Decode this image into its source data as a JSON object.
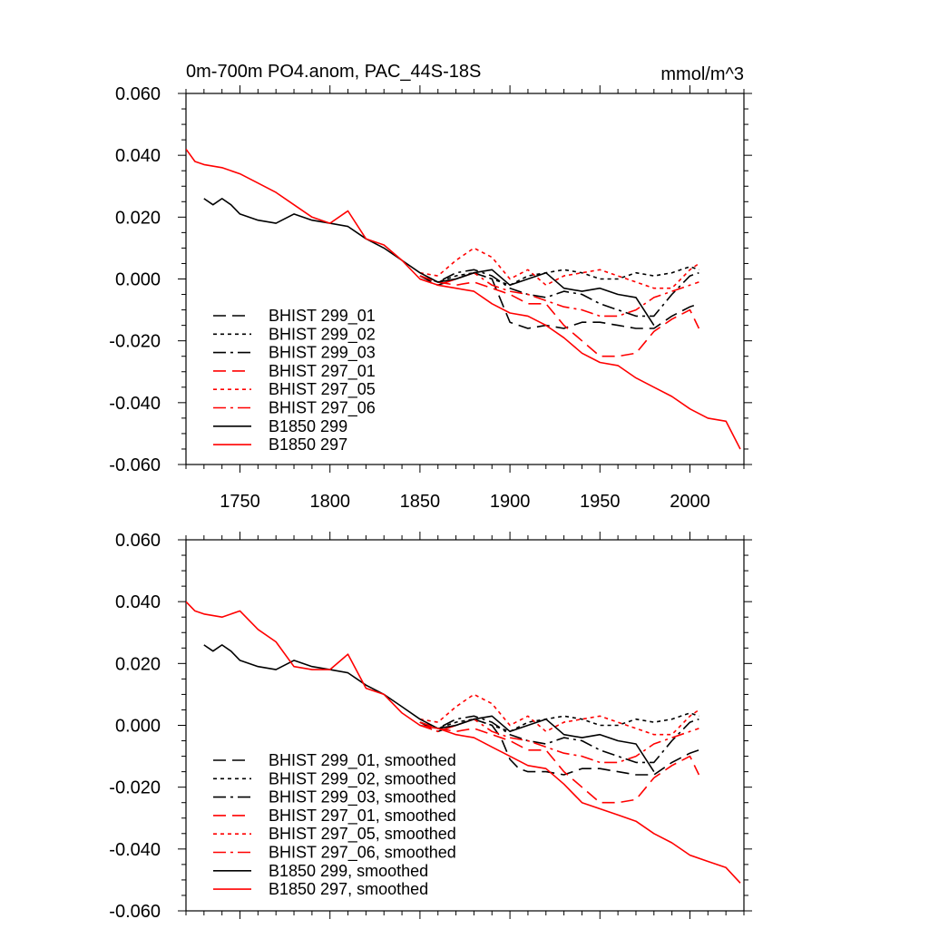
{
  "chart_data": [
    {
      "type": "line",
      "title": "0m-700m PO4.anom, PAC_44S-18S",
      "units": "mmol/m^3",
      "xlim": [
        1720,
        2030
      ],
      "ylim": [
        -0.06,
        0.06
      ],
      "xticks": [
        1750,
        1800,
        1850,
        1900,
        1950,
        2000
      ],
      "yticks": [
        -0.06,
        -0.04,
        -0.02,
        0.0,
        0.02,
        0.04,
        0.06
      ],
      "ytick_labels": [
        "-0.060",
        "-0.040",
        "-0.020",
        "0.000",
        "0.020",
        "0.040",
        "0.060"
      ],
      "xtick_labels": [
        "1750",
        "1800",
        "1850",
        "1900",
        "1950",
        "2000"
      ],
      "legend_position": "lower-left",
      "series": [
        {
          "name": "BHIST 299_01",
          "color": "#000000",
          "dash": "dashed",
          "x": [
            1850,
            1860,
            1870,
            1880,
            1890,
            1900,
            1910,
            1920,
            1930,
            1940,
            1950,
            1960,
            1970,
            1980,
            1990,
            2000,
            2005
          ],
          "y": [
            0.001,
            -0.002,
            0.0,
            0.002,
            0.0,
            -0.014,
            -0.016,
            -0.015,
            -0.016,
            -0.014,
            -0.014,
            -0.015,
            -0.016,
            -0.016,
            -0.012,
            -0.009,
            -0.008
          ]
        },
        {
          "name": "BHIST 299_02",
          "color": "#000000",
          "dash": "dotted",
          "x": [
            1850,
            1860,
            1870,
            1880,
            1890,
            1900,
            1910,
            1920,
            1930,
            1940,
            1950,
            1960,
            1970,
            1980,
            1990,
            2000,
            2005
          ],
          "y": [
            0.001,
            -0.001,
            0.001,
            0.002,
            0.0,
            -0.002,
            0.001,
            0.002,
            0.003,
            0.002,
            0.0,
            0.0,
            0.002,
            0.001,
            0.002,
            0.004,
            0.003
          ]
        },
        {
          "name": "BHIST 299_03",
          "color": "#000000",
          "dash": "dashdot",
          "x": [
            1850,
            1860,
            1870,
            1880,
            1890,
            1900,
            1910,
            1920,
            1930,
            1940,
            1950,
            1960,
            1970,
            1980,
            1990,
            2000,
            2005
          ],
          "y": [
            0.001,
            -0.001,
            0.002,
            0.003,
            0.001,
            -0.003,
            -0.005,
            -0.006,
            -0.004,
            -0.005,
            -0.008,
            -0.01,
            -0.012,
            -0.012,
            -0.005,
            0.001,
            0.002
          ]
        },
        {
          "name": "BHIST 297_01",
          "color": "#ff0000",
          "dash": "dashed",
          "x": [
            1850,
            1860,
            1870,
            1880,
            1890,
            1900,
            1910,
            1920,
            1930,
            1940,
            1950,
            1960,
            1970,
            1980,
            1990,
            2000,
            2005
          ],
          "y": [
            0.001,
            -0.001,
            -0.002,
            -0.001,
            -0.003,
            -0.005,
            -0.008,
            -0.008,
            -0.015,
            -0.02,
            -0.025,
            -0.025,
            -0.024,
            -0.017,
            -0.013,
            -0.01,
            -0.016
          ]
        },
        {
          "name": "BHIST 297_05",
          "color": "#ff0000",
          "dash": "dotted",
          "x": [
            1850,
            1860,
            1870,
            1880,
            1890,
            1900,
            1910,
            1920,
            1930,
            1940,
            1950,
            1960,
            1970,
            1980,
            1990,
            2000,
            2005
          ],
          "y": [
            0.002,
            0.001,
            0.006,
            0.01,
            0.007,
            0.0,
            0.003,
            -0.002,
            0.001,
            0.002,
            0.003,
            0.001,
            -0.001,
            -0.003,
            -0.003,
            0.003,
            0.005
          ]
        },
        {
          "name": "BHIST 297_06",
          "color": "#ff0000",
          "dash": "dashdot",
          "x": [
            1850,
            1860,
            1870,
            1880,
            1890,
            1900,
            1910,
            1920,
            1930,
            1940,
            1950,
            1960,
            1970,
            1980,
            1990,
            2000,
            2005
          ],
          "y": [
            0.0,
            -0.002,
            0.0,
            0.002,
            -0.002,
            -0.004,
            -0.005,
            -0.007,
            -0.009,
            -0.01,
            -0.012,
            -0.012,
            -0.01,
            -0.006,
            -0.004,
            -0.002,
            -0.001
          ]
        },
        {
          "name": "B1850 299",
          "color": "#000000",
          "dash": "solid",
          "x": [
            1730,
            1735,
            1740,
            1745,
            1750,
            1760,
            1770,
            1780,
            1790,
            1800,
            1810,
            1820,
            1830,
            1840,
            1850,
            1860,
            1870,
            1880,
            1890,
            1900,
            1910,
            1920,
            1930,
            1940,
            1950,
            1960,
            1970,
            1980
          ],
          "y": [
            0.026,
            0.024,
            0.026,
            0.024,
            0.021,
            0.019,
            0.018,
            0.021,
            0.019,
            0.018,
            0.017,
            0.013,
            0.01,
            0.006,
            0.002,
            -0.001,
            0.0,
            0.002,
            0.003,
            -0.002,
            0.0,
            0.002,
            -0.003,
            -0.004,
            -0.003,
            -0.005,
            -0.006,
            -0.015
          ]
        },
        {
          "name": "B1850 297",
          "color": "#ff0000",
          "dash": "solid",
          "x": [
            1720,
            1725,
            1730,
            1740,
            1750,
            1760,
            1770,
            1780,
            1790,
            1800,
            1810,
            1820,
            1830,
            1840,
            1850,
            1860,
            1870,
            1880,
            1890,
            1900,
            1910,
            1920,
            1930,
            1940,
            1950,
            1960,
            1970,
            1980,
            1990,
            2000,
            2010,
            2020,
            2028
          ],
          "y": [
            0.042,
            0.038,
            0.037,
            0.036,
            0.034,
            0.031,
            0.028,
            0.024,
            0.02,
            0.018,
            0.022,
            0.013,
            0.011,
            0.006,
            0.0,
            -0.002,
            -0.003,
            -0.004,
            -0.008,
            -0.011,
            -0.012,
            -0.015,
            -0.019,
            -0.024,
            -0.027,
            -0.028,
            -0.032,
            -0.035,
            -0.038,
            -0.042,
            -0.045,
            -0.046,
            -0.055
          ]
        }
      ]
    },
    {
      "type": "line",
      "xlim": [
        1720,
        2030
      ],
      "ylim": [
        -0.06,
        0.06
      ],
      "xticks": [
        1750,
        1800,
        1850,
        1900,
        1950,
        2000
      ],
      "yticks": [
        -0.06,
        -0.04,
        -0.02,
        0.0,
        0.02,
        0.04,
        0.06
      ],
      "ytick_labels": [
        "-0.060",
        "-0.040",
        "-0.020",
        "0.000",
        "0.020",
        "0.040",
        "0.060"
      ],
      "legend_position": "lower-left",
      "series": [
        {
          "name": "BHIST 299_01, smoothed",
          "color": "#000000",
          "dash": "dashed",
          "x": [
            1850,
            1860,
            1870,
            1880,
            1890,
            1895,
            1900,
            1905,
            1910,
            1920,
            1930,
            1940,
            1950,
            1960,
            1970,
            1980,
            1990,
            2000,
            2005
          ],
          "y": [
            0.001,
            -0.002,
            0.0,
            0.002,
            0.0,
            -0.004,
            -0.011,
            -0.014,
            -0.015,
            -0.015,
            -0.016,
            -0.014,
            -0.014,
            -0.015,
            -0.016,
            -0.016,
            -0.012,
            -0.009,
            -0.008
          ]
        },
        {
          "name": "BHIST 299_02, smoothed",
          "color": "#000000",
          "dash": "dotted",
          "x": [
            1850,
            1860,
            1870,
            1880,
            1890,
            1900,
            1910,
            1920,
            1930,
            1940,
            1950,
            1960,
            1970,
            1980,
            1990,
            2000,
            2005
          ],
          "y": [
            0.001,
            -0.001,
            0.001,
            0.002,
            0.0,
            -0.002,
            0.001,
            0.002,
            0.003,
            0.002,
            0.0,
            0.0,
            0.002,
            0.001,
            0.002,
            0.004,
            0.003
          ]
        },
        {
          "name": "BHIST 299_03, smoothed",
          "color": "#000000",
          "dash": "dashdot",
          "x": [
            1850,
            1860,
            1870,
            1880,
            1890,
            1900,
            1910,
            1920,
            1930,
            1940,
            1950,
            1960,
            1970,
            1980,
            1990,
            2000,
            2005
          ],
          "y": [
            0.001,
            -0.001,
            0.002,
            0.003,
            0.001,
            -0.003,
            -0.005,
            -0.006,
            -0.004,
            -0.005,
            -0.008,
            -0.01,
            -0.012,
            -0.012,
            -0.005,
            0.001,
            0.002
          ]
        },
        {
          "name": "BHIST 297_01, smoothed",
          "color": "#ff0000",
          "dash": "dashed",
          "x": [
            1850,
            1860,
            1870,
            1880,
            1890,
            1900,
            1910,
            1920,
            1930,
            1940,
            1950,
            1960,
            1970,
            1980,
            1990,
            2000,
            2005
          ],
          "y": [
            0.001,
            -0.001,
            -0.002,
            -0.001,
            -0.003,
            -0.005,
            -0.008,
            -0.008,
            -0.015,
            -0.02,
            -0.025,
            -0.025,
            -0.024,
            -0.017,
            -0.013,
            -0.01,
            -0.016
          ]
        },
        {
          "name": "BHIST 297_05, smoothed",
          "color": "#ff0000",
          "dash": "dotted",
          "x": [
            1850,
            1860,
            1870,
            1880,
            1890,
            1900,
            1910,
            1920,
            1930,
            1940,
            1950,
            1960,
            1970,
            1980,
            1990,
            2000,
            2005
          ],
          "y": [
            0.002,
            0.001,
            0.006,
            0.01,
            0.007,
            0.0,
            0.003,
            -0.002,
            0.001,
            0.002,
            0.003,
            0.001,
            -0.001,
            -0.003,
            -0.003,
            0.003,
            0.005
          ]
        },
        {
          "name": "BHIST 297_06, smoothed",
          "color": "#ff0000",
          "dash": "dashdot",
          "x": [
            1850,
            1860,
            1870,
            1880,
            1890,
            1900,
            1910,
            1920,
            1930,
            1940,
            1950,
            1960,
            1970,
            1980,
            1990,
            2000,
            2005
          ],
          "y": [
            0.0,
            -0.002,
            0.0,
            0.002,
            -0.002,
            -0.004,
            -0.005,
            -0.007,
            -0.009,
            -0.01,
            -0.012,
            -0.012,
            -0.01,
            -0.006,
            -0.004,
            -0.002,
            -0.001
          ]
        },
        {
          "name": "B1850 299, smoothed",
          "color": "#000000",
          "dash": "solid",
          "x": [
            1730,
            1735,
            1740,
            1745,
            1750,
            1760,
            1770,
            1780,
            1790,
            1800,
            1810,
            1820,
            1830,
            1840,
            1850,
            1860,
            1870,
            1880,
            1890,
            1900,
            1910,
            1920,
            1930,
            1940,
            1950,
            1960,
            1970,
            1980
          ],
          "y": [
            0.026,
            0.024,
            0.026,
            0.024,
            0.021,
            0.019,
            0.018,
            0.021,
            0.019,
            0.018,
            0.017,
            0.013,
            0.01,
            0.006,
            0.002,
            -0.001,
            0.0,
            0.002,
            0.003,
            -0.002,
            0.0,
            0.002,
            -0.003,
            -0.004,
            -0.003,
            -0.005,
            -0.006,
            -0.015
          ]
        },
        {
          "name": "B1850 297, smoothed",
          "color": "#ff0000",
          "dash": "solid",
          "x": [
            1720,
            1725,
            1730,
            1740,
            1750,
            1760,
            1770,
            1780,
            1790,
            1800,
            1810,
            1820,
            1830,
            1840,
            1850,
            1860,
            1870,
            1880,
            1890,
            1900,
            1910,
            1920,
            1930,
            1940,
            1950,
            1960,
            1970,
            1980,
            1990,
            2000,
            2010,
            2020,
            2028
          ],
          "y": [
            0.04,
            0.037,
            0.036,
            0.035,
            0.037,
            0.031,
            0.027,
            0.019,
            0.018,
            0.018,
            0.023,
            0.012,
            0.01,
            0.004,
            0.0,
            -0.001,
            -0.003,
            -0.004,
            -0.007,
            -0.01,
            -0.013,
            -0.014,
            -0.019,
            -0.025,
            -0.027,
            -0.029,
            -0.031,
            -0.035,
            -0.038,
            -0.042,
            -0.044,
            -0.046,
            -0.051
          ]
        }
      ]
    }
  ]
}
